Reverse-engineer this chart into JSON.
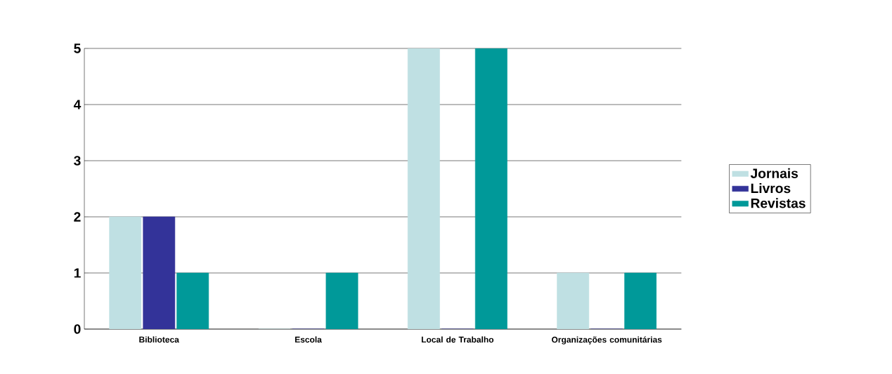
{
  "chart_data": {
    "type": "bar",
    "categories": [
      "Biblioteca",
      "Escola",
      "Local de Trabalho",
      "Organizações comunitárias"
    ],
    "series": [
      {
        "name": "Jornais",
        "color": "#bfe0e3",
        "values": [
          2,
          0,
          5,
          1
        ]
      },
      {
        "name": "Livros",
        "color": "#333399",
        "values": [
          2,
          0,
          0,
          0
        ]
      },
      {
        "name": "Revistas",
        "color": "#009999",
        "values": [
          1,
          1,
          5,
          1
        ]
      }
    ],
    "ylim": [
      0,
      5
    ],
    "yticks": [
      0,
      1,
      2,
      3,
      4,
      5
    ],
    "grid": "y",
    "legend": "right"
  }
}
